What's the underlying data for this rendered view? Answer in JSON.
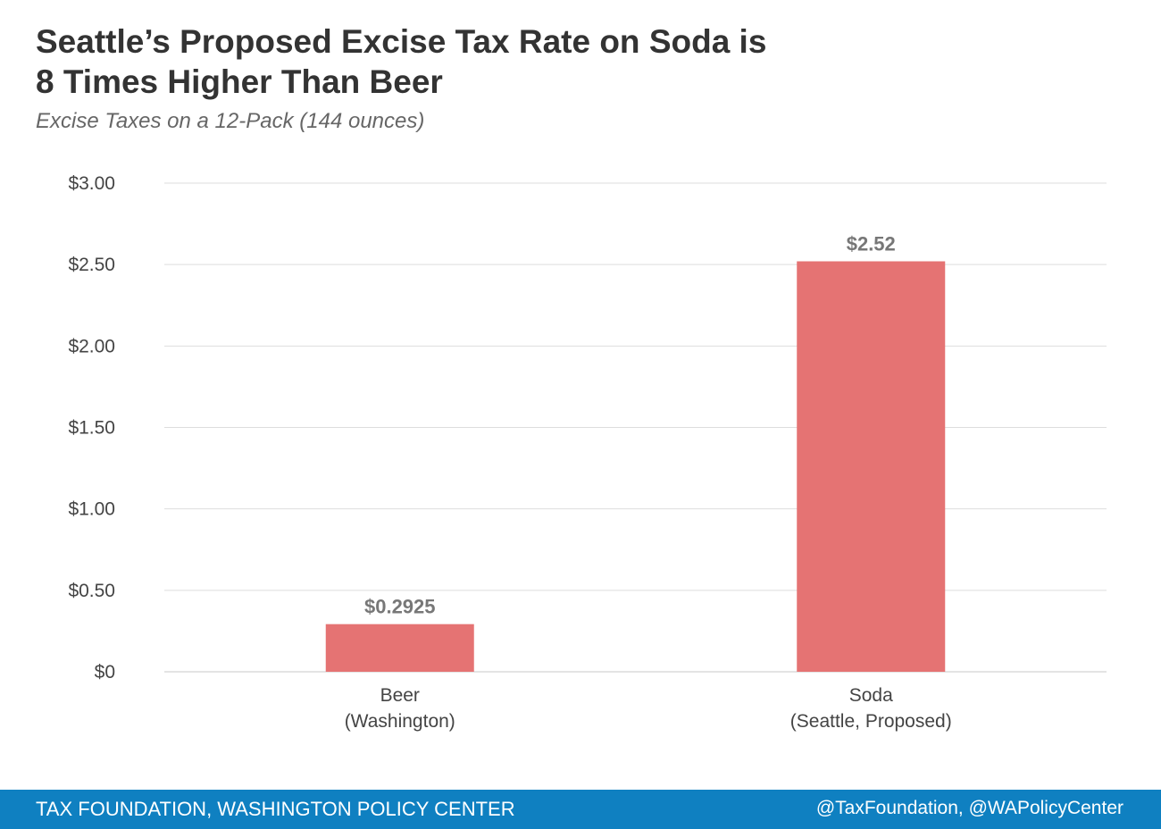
{
  "header": {
    "title_line1": "Seattle’s Proposed Excise Tax Rate on Soda is",
    "title_line2": "8 Times Higher Than Beer",
    "subtitle": "Excise Taxes on a 12-Pack (144 ounces)"
  },
  "chart_data": {
    "type": "bar",
    "categories": [
      [
        "Beer",
        "(Washington)"
      ],
      [
        "Soda",
        "(Seattle, Proposed)"
      ]
    ],
    "values": [
      0.2925,
      2.52
    ],
    "data_labels": [
      "$0.2925",
      "$2.52"
    ],
    "ylim": [
      0,
      3
    ],
    "yticks": [
      0,
      0.5,
      1,
      1.5,
      2,
      2.5,
      3
    ],
    "ytick_labels": [
      "$0",
      "$0.50",
      "$1.00",
      "$1.50",
      "$2.00",
      "$2.50",
      "$3.00"
    ],
    "grid": true,
    "bar_color": "#e57373"
  },
  "footer": {
    "source": "TAX FOUNDATION, WASHINGTON POLICY CENTER",
    "handles": "@TaxFoundation, @WAPolicyCenter",
    "color": "#0f80c1"
  }
}
